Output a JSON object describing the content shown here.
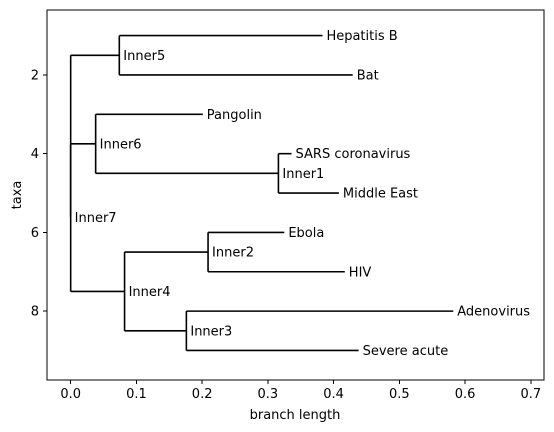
{
  "chart_data": {
    "type": "tree",
    "xlabel": "branch length",
    "ylabel": "taxa",
    "xlim": [
      -0.036,
      0.72
    ],
    "ylim": [
      9.75,
      0.35
    ],
    "x_ticks": [
      0.0,
      0.1,
      0.2,
      0.3,
      0.4,
      0.5,
      0.6,
      0.7
    ],
    "x_tick_labels": [
      "0.0",
      "0.1",
      "0.2",
      "0.3",
      "0.4",
      "0.5",
      "0.6",
      "0.7"
    ],
    "y_ticks": [
      2,
      4,
      6,
      8
    ],
    "y_tick_labels": [
      "2",
      "4",
      "6",
      "8"
    ],
    "tree": {
      "label": "",
      "length": 0.0,
      "children": [
        {
          "label": "Inner5",
          "length": 0.074,
          "children": [
            {
              "label": "Hepatitis B",
              "length": 0.309
            },
            {
              "label": "Bat",
              "length": 0.355
            }
          ]
        },
        {
          "label": "Inner7",
          "length": 0.0,
          "children": [
            {
              "label": "Inner6",
              "length": 0.038,
              "children": [
                {
                  "label": "Pangolin",
                  "length": 0.163
                },
                {
                  "label": "Inner1",
                  "length": 0.278,
                  "children": [
                    {
                      "label": "SARS coronavirus",
                      "length": 0.02
                    },
                    {
                      "label": "Middle East",
                      "length": 0.092
                    }
                  ]
                }
              ]
            },
            {
              "label": "Inner4",
              "length": 0.082,
              "children": [
                {
                  "label": "Inner2",
                  "length": 0.127,
                  "children": [
                    {
                      "label": "Ebola",
                      "length": 0.116
                    },
                    {
                      "label": "HIV",
                      "length": 0.208
                    }
                  ]
                },
                {
                  "label": "Inner3",
                  "length": 0.094,
                  "children": [
                    {
                      "label": "Adenovirus",
                      "length": 0.406
                    },
                    {
                      "label": "Severe acute",
                      "length": 0.262
                    }
                  ]
                }
              ]
            }
          ]
        }
      ]
    }
  }
}
